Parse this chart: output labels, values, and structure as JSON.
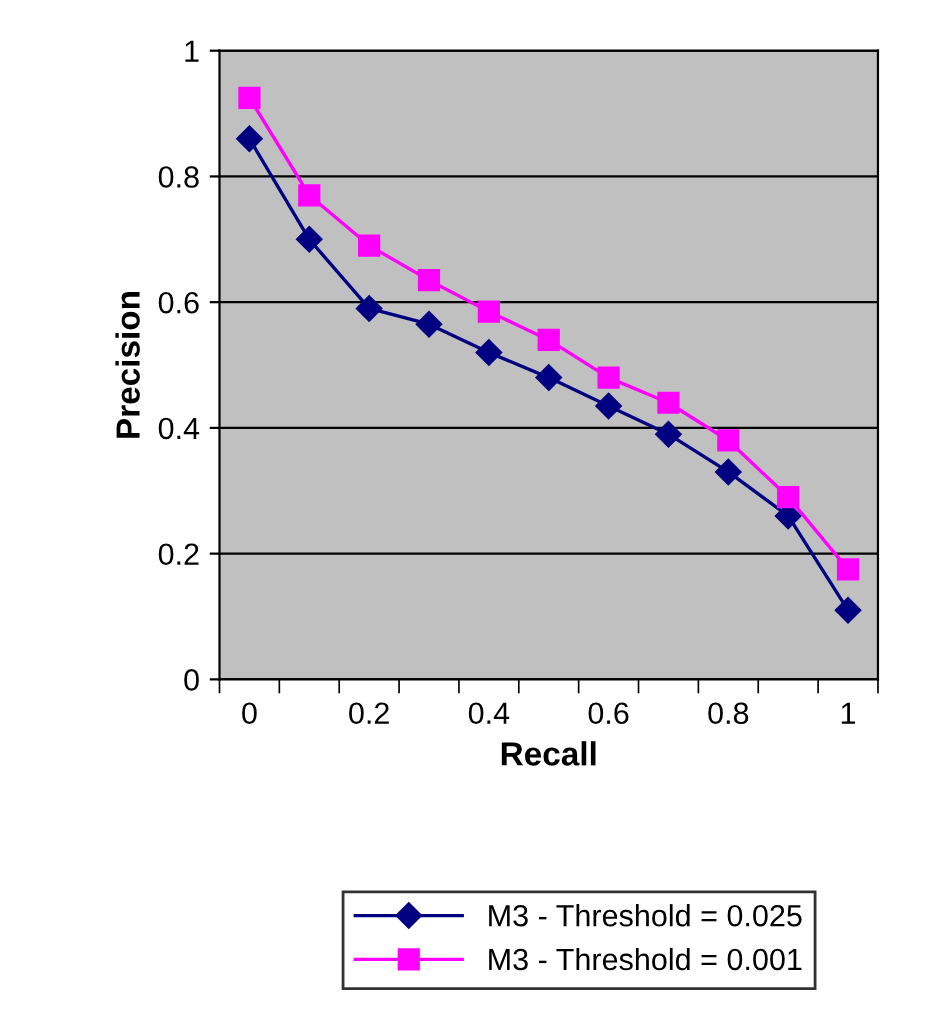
{
  "chart_data": {
    "type": "line",
    "xlabel": "Recall",
    "ylabel": "Precision",
    "categories": [
      "0",
      null,
      "0.2",
      null,
      "0.4",
      null,
      "0.6",
      null,
      "0.8",
      null,
      "1"
    ],
    "series": [
      {
        "name": "M3 - Threshold = 0.025",
        "color": "#000080",
        "marker": "diamond",
        "values": [
          0.86,
          0.7,
          0.59,
          0.565,
          0.52,
          0.48,
          0.435,
          0.39,
          0.33,
          0.26,
          0.11
        ]
      },
      {
        "name": "M3 - Threshold = 0.001",
        "color": "#ff00ff",
        "marker": "square",
        "values": [
          0.925,
          0.77,
          0.69,
          0.635,
          0.585,
          0.54,
          0.48,
          0.44,
          0.38,
          0.29,
          0.175
        ]
      }
    ],
    "ylim": [
      0,
      1
    ],
    "yticks": [
      0,
      0.2,
      0.4,
      0.6,
      0.8,
      1
    ],
    "grid": "y",
    "legend": "bottom"
  }
}
